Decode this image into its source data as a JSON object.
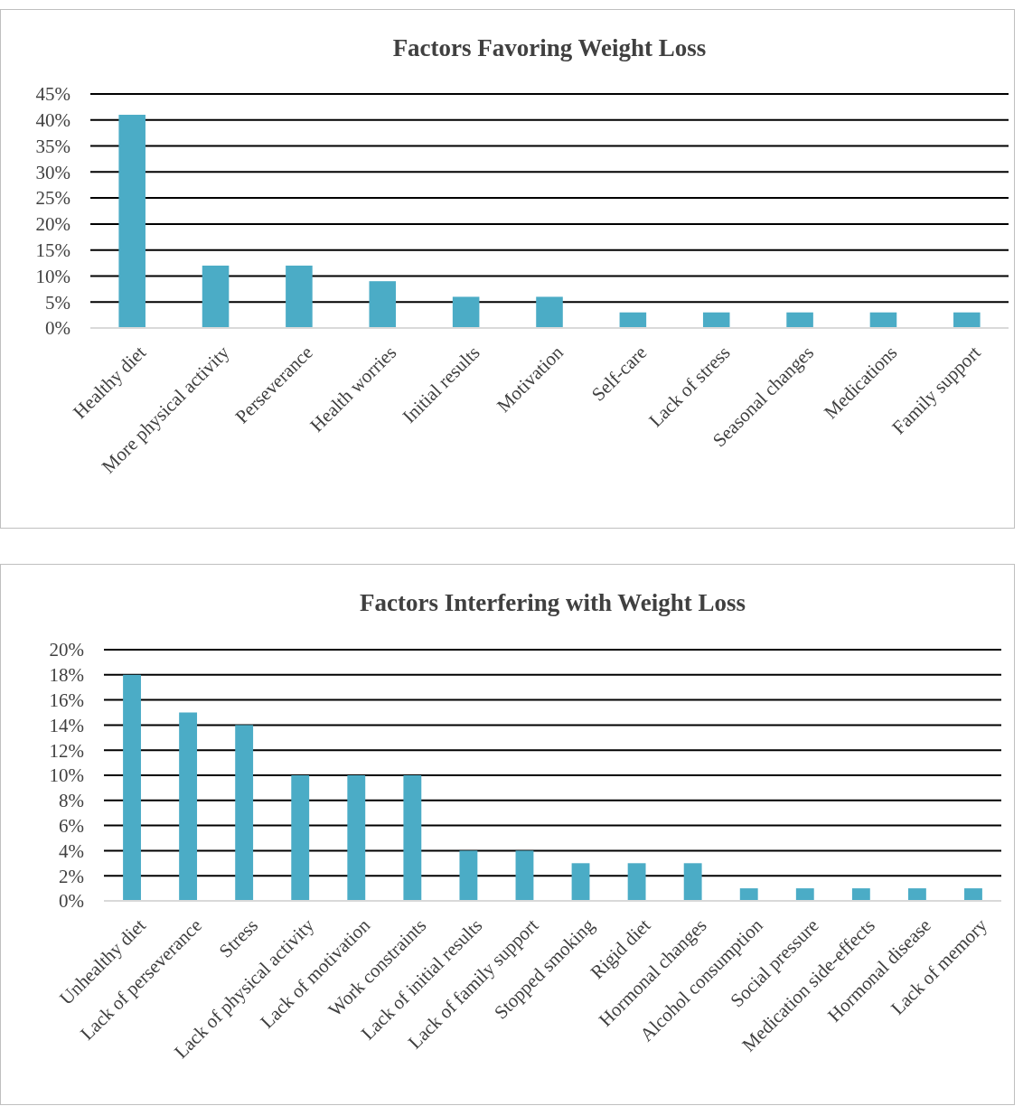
{
  "chart_data": [
    {
      "type": "bar",
      "title": "Factors Favoring Weight Loss",
      "categories": [
        "Healthy diet",
        "More physical activity",
        "Perseverance",
        "Health worries",
        "Initial results",
        "Motivation",
        "Self-care",
        "Lack of stress",
        "Seasonal changes",
        "Medications",
        "Family support"
      ],
      "series": [
        {
          "color": "#4bacc6",
          "values": [
            41,
            12,
            12,
            9,
            6,
            6,
            3,
            3,
            3,
            3,
            3
          ]
        }
      ],
      "ylim": [
        0,
        45
      ],
      "yticks": [
        {
          "value": 0,
          "label": "0%"
        },
        {
          "value": 5,
          "label": "5%"
        },
        {
          "value": 10,
          "label": "10%"
        },
        {
          "value": 15,
          "label": "15%"
        },
        {
          "value": 20,
          "label": "20%"
        },
        {
          "value": 25,
          "label": "25%"
        },
        {
          "value": 30,
          "label": "30%"
        },
        {
          "value": 35,
          "label": "35%"
        },
        {
          "value": 40,
          "label": "40%"
        },
        {
          "value": 45,
          "label": "45%"
        }
      ],
      "grid": "y"
    },
    {
      "type": "bar",
      "title": "Factors Interfering with Weight Loss",
      "categories": [
        "Unhealthy diet",
        "Lack of perseverance",
        "Stress",
        "Lack of physical activity",
        "Lack of motivation",
        "Work constraints",
        "Lack of initial results",
        "Lack of family support",
        "Stopped smoking",
        "Rigid diet",
        "Hormonal changes",
        "Alcohol consumption",
        "Social pressure",
        "Medication side-effects",
        "Hormonal disease",
        "Lack of memory"
      ],
      "series": [
        {
          "color": "#4bacc6",
          "values": [
            18,
            15,
            14,
            10,
            10,
            10,
            4,
            4,
            3,
            3,
            3,
            1,
            1,
            1,
            1,
            1
          ]
        }
      ],
      "ylim": [
        0,
        20
      ],
      "yticks": [
        {
          "value": 0,
          "label": "0%"
        },
        {
          "value": 2,
          "label": "2%"
        },
        {
          "value": 4,
          "label": "4%"
        },
        {
          "value": 6,
          "label": "6%"
        },
        {
          "value": 8,
          "label": "8%"
        },
        {
          "value": 10,
          "label": "10%"
        },
        {
          "value": 12,
          "label": "12%"
        },
        {
          "value": 14,
          "label": "14%"
        },
        {
          "value": 16,
          "label": "16%"
        },
        {
          "value": 18,
          "label": "18%"
        },
        {
          "value": 20,
          "label": "20%"
        }
      ],
      "grid": "y"
    }
  ]
}
